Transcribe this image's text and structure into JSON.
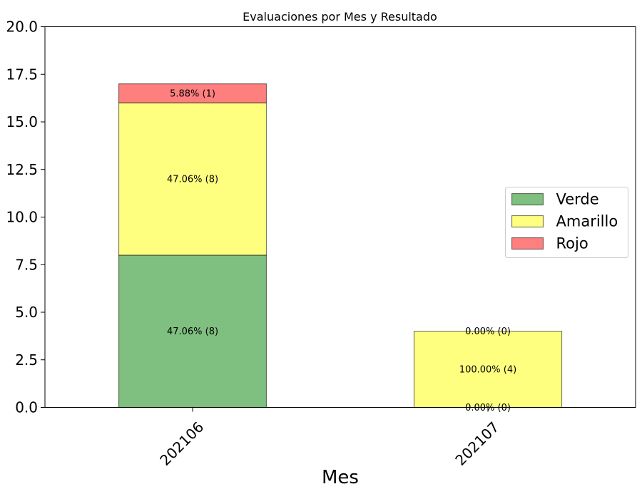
{
  "chart_data": {
    "type": "bar",
    "stacked": true,
    "title": "Evaluaciones por Mes y Resultado",
    "xlabel": "Mes",
    "ylabel": "",
    "categories": [
      "202106",
      "202107"
    ],
    "ylim": [
      0,
      20
    ],
    "yticks": [
      "0.0",
      "2.5",
      "5.0",
      "7.5",
      "10.0",
      "12.5",
      "15.0",
      "17.5",
      "20.0"
    ],
    "grid": false,
    "legend_position": "center-right",
    "series": [
      {
        "name": "Verde",
        "color": "#7fbf7f",
        "values": [
          8,
          0
        ],
        "labels": [
          "47.06% (8)",
          "0.00% (0)"
        ]
      },
      {
        "name": "Amarillo",
        "color": "#ffff7f",
        "values": [
          8,
          4
        ],
        "labels": [
          "47.06% (8)",
          "100.00% (4)"
        ]
      },
      {
        "name": "Rojo",
        "color": "#ff7f7f",
        "values": [
          1,
          0
        ],
        "labels": [
          "5.88% (1)",
          "0.00% (0)"
        ]
      }
    ]
  }
}
